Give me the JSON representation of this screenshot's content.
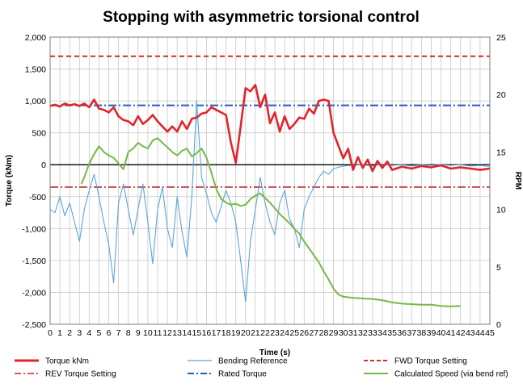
{
  "chart_data": {
    "type": "line",
    "title": "Stopping with asymmetric torsional control",
    "xlabel": "Time (s)",
    "ylabel": "Torque (kNm)",
    "y2label": "RPM",
    "xlim": [
      0,
      45
    ],
    "ylim": [
      -2500,
      2000
    ],
    "y2lim": [
      0,
      25
    ],
    "x_ticks": [
      "0",
      "1",
      "2",
      "3",
      "4",
      "5",
      "6",
      "7",
      "8",
      "9",
      "10",
      "11",
      "12",
      "13",
      "14",
      "15",
      "16",
      "17",
      "18",
      "19",
      "20",
      "21",
      "22",
      "23",
      "24",
      "25",
      "26",
      "27",
      "28",
      "29",
      "30",
      "31",
      "32",
      "33",
      "34",
      "35",
      "36",
      "37",
      "38",
      "39",
      "40",
      "41",
      "42",
      "43",
      "44",
      "45"
    ],
    "y_ticks": [
      "2,000",
      "1,500",
      "1,000",
      "500",
      "0",
      "-500",
      "-1,000",
      "-1,500",
      "-2,000",
      "-2,500"
    ],
    "y2_ticks": [
      "25",
      "20",
      "15",
      "10",
      "5",
      "0"
    ],
    "grid": true,
    "legend_position": "bottom",
    "colors": {
      "torque": "#e0252b",
      "bending": "#5aa6d8",
      "fwd": "#e0252b",
      "rev": "#c0282c",
      "rated": "#1f5fbf",
      "speed": "#78b845"
    },
    "legend": [
      {
        "key": "torque",
        "label": "Torque kNm"
      },
      {
        "key": "bending",
        "label": "Bending Reference"
      },
      {
        "key": "fwd",
        "label": "FWD Torque Setting"
      },
      {
        "key": "rev",
        "label": "REV Torque Setting"
      },
      {
        "key": "rated",
        "label": "Rated Torque"
      },
      {
        "key": "speed",
        "label": "Calculated Speed (via bend ref)"
      }
    ],
    "reference_lines": {
      "fwd_torque_setting": 1700,
      "rev_torque_setting": -350,
      "rated_torque": 930
    },
    "series": [
      {
        "key": "torque",
        "name": "Torque kNm",
        "axis": "left",
        "x": [
          0,
          0.5,
          1,
          1.5,
          2,
          2.5,
          3,
          3.5,
          4,
          4.5,
          5,
          5.5,
          6,
          6.5,
          7,
          7.5,
          8,
          8.5,
          9,
          9.5,
          10,
          10.5,
          11,
          11.5,
          12,
          12.5,
          13,
          13.5,
          14,
          14.5,
          15,
          15.5,
          16,
          16.5,
          17,
          17.5,
          18,
          18.5,
          19,
          19.5,
          20,
          20.5,
          21,
          21.5,
          22,
          22.5,
          23,
          23.5,
          24,
          24.5,
          25,
          25.5,
          26,
          26.5,
          27,
          27.5,
          28,
          28.5,
          29,
          29.5,
          30,
          30.5,
          31,
          31.5,
          32,
          32.5,
          33,
          33.5,
          34,
          34.5,
          35,
          36,
          37,
          38,
          39,
          40,
          41,
          42,
          43,
          44,
          45
        ],
        "values": [
          920,
          940,
          910,
          960,
          930,
          950,
          920,
          960,
          900,
          1020,
          880,
          860,
          820,
          900,
          760,
          700,
          680,
          620,
          760,
          640,
          700,
          780,
          680,
          600,
          520,
          600,
          520,
          680,
          560,
          720,
          740,
          800,
          820,
          900,
          860,
          820,
          780,
          350,
          30,
          600,
          1200,
          1150,
          1250,
          900,
          1100,
          650,
          820,
          520,
          760,
          560,
          640,
          740,
          720,
          880,
          800,
          1000,
          1020,
          1000,
          500,
          300,
          100,
          250,
          -80,
          120,
          -50,
          80,
          -100,
          60,
          -50,
          50,
          -80,
          -30,
          -60,
          -20,
          -40,
          -10,
          -60,
          -40,
          -60,
          -80,
          -60
        ]
      },
      {
        "key": "bending",
        "name": "Bending Reference",
        "axis": "left",
        "x": [
          0,
          0.5,
          1,
          1.5,
          2,
          2.5,
          3,
          3.5,
          4,
          4.5,
          5,
          5.5,
          6,
          6.5,
          7,
          7.5,
          8,
          8.5,
          9,
          9.5,
          10,
          10.5,
          11,
          11.5,
          12,
          12.5,
          13,
          13.5,
          14,
          14.5,
          15,
          15.5,
          16,
          16.5,
          17,
          17.5,
          18,
          18.5,
          19,
          19.5,
          20,
          20.5,
          21,
          21.5,
          22,
          22.5,
          23,
          23.5,
          24,
          24.5,
          25,
          25.5,
          26,
          26.5,
          27,
          27.5,
          28,
          28.5,
          29,
          29.5,
          30,
          31,
          32,
          33,
          34,
          35,
          36,
          37,
          38,
          39,
          40,
          41,
          42,
          43,
          44,
          45
        ],
        "values": [
          -700,
          -750,
          -500,
          -800,
          -600,
          -900,
          -1200,
          -700,
          -400,
          -150,
          -500,
          -900,
          -1250,
          -1850,
          -600,
          -300,
          -700,
          -1100,
          -700,
          -300,
          -900,
          -1550,
          -700,
          -350,
          -1000,
          -1300,
          -500,
          -1050,
          -1450,
          -500,
          1000,
          -200,
          -450,
          -750,
          -900,
          -650,
          -400,
          -600,
          -900,
          -1500,
          -2150,
          -1200,
          -700,
          -200,
          -600,
          -900,
          -1100,
          -600,
          -400,
          -850,
          -1000,
          -1300,
          -700,
          -500,
          -350,
          -200,
          -100,
          -150,
          -60,
          -40,
          -20,
          -10,
          0,
          -20,
          10,
          -10,
          0,
          -20,
          0,
          10,
          0,
          -10,
          0,
          -20,
          -10,
          -30
        ]
      },
      {
        "key": "speed",
        "name": "Calculated Speed (via bend ref)",
        "axis": "right",
        "x": [
          3.2,
          3.5,
          4,
          4.5,
          5,
          5.5,
          6,
          6.5,
          7,
          7.5,
          8,
          8.5,
          9,
          9.5,
          10,
          10.5,
          11,
          11.5,
          12,
          12.5,
          13,
          13.5,
          14,
          14.5,
          15,
          15.5,
          16,
          16.5,
          17,
          17.5,
          18,
          18.5,
          19,
          19.5,
          20,
          20.5,
          21,
          21.5,
          22,
          22.5,
          23,
          23.5,
          24,
          24.5,
          25,
          25.5,
          26,
          26.5,
          27,
          27.5,
          28,
          28.5,
          29,
          29.5,
          30,
          31,
          32,
          33,
          34,
          35,
          36,
          37,
          38,
          39,
          40,
          41,
          42
        ],
        "values": [
          12.2,
          12.8,
          14.0,
          14.8,
          15.5,
          15.0,
          14.7,
          14.5,
          14.0,
          13.5,
          15.0,
          15.3,
          15.8,
          15.5,
          15.3,
          16.0,
          16.2,
          15.8,
          15.4,
          15.0,
          14.7,
          15.1,
          15.3,
          14.6,
          14.9,
          15.3,
          14.5,
          13.2,
          11.8,
          10.9,
          10.6,
          10.4,
          10.5,
          10.3,
          10.4,
          10.9,
          11.2,
          11.4,
          11.0,
          10.6,
          10.1,
          9.6,
          9.2,
          8.8,
          8.3,
          7.9,
          7.2,
          6.6,
          6.0,
          5.4,
          4.6,
          3.9,
          3.1,
          2.6,
          2.4,
          2.3,
          2.25,
          2.2,
          2.1,
          1.9,
          1.8,
          1.75,
          1.7,
          1.7,
          1.6,
          1.55,
          1.6
        ]
      }
    ]
  }
}
